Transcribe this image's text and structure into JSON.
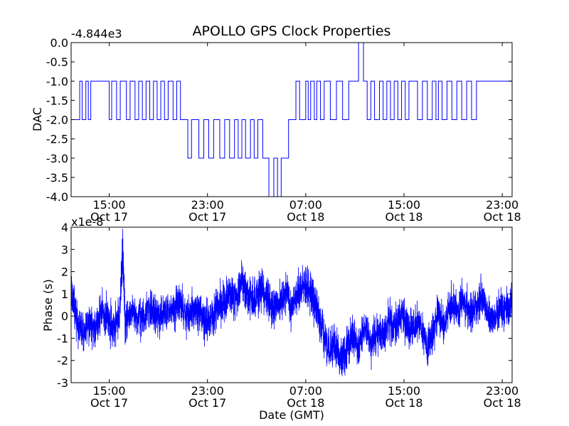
{
  "title": "APOLLO GPS Clock Properties",
  "line_color": "#0000ff",
  "x_ticks": [
    {
      "time": "15:00",
      "date": "Oct 17"
    },
    {
      "time": "23:00",
      "date": "Oct 17"
    },
    {
      "time": "07:00",
      "date": "Oct 18"
    },
    {
      "time": "15:00",
      "date": "Oct 18"
    },
    {
      "time": "23:00",
      "date": "Oct 18"
    }
  ],
  "x_label": "Date (GMT)",
  "chart_data": [
    {
      "type": "line",
      "title": "APOLLO GPS Clock Properties",
      "ylabel": "DAC",
      "offset_label": "-4.844e3",
      "ylim": [
        -4.0,
        0.0
      ],
      "yticks": [
        "0.0",
        "-0.5",
        "-1.0",
        "-1.5",
        "-2.0",
        "-2.5",
        "-3.0",
        "-3.5",
        "-4.0"
      ],
      "x_range_hours": [
        11.9,
        47.8
      ],
      "x_tick_hours": [
        15,
        23,
        31,
        39,
        47
      ],
      "series": [
        {
          "step": true,
          "x": [
            11.9,
            12.6,
            12.8,
            13.1,
            13.3,
            13.5,
            13.8,
            15.0,
            15.2,
            15.6,
            15.9,
            16.4,
            16.7,
            17.1,
            17.4,
            17.7,
            18.0,
            18.3,
            18.6,
            18.9,
            19.2,
            19.5,
            19.8,
            20.2,
            20.5,
            20.8,
            21.1,
            21.4,
            21.7,
            22.3,
            22.7,
            23.1,
            23.5,
            24.0,
            24.4,
            24.8,
            25.2,
            25.5,
            25.8,
            26.1,
            26.5,
            26.8,
            27.1,
            27.5,
            28.0,
            28.4,
            28.7,
            29.0,
            29.3,
            29.6,
            29.9,
            30.2,
            30.5,
            30.8,
            31.0,
            31.2,
            31.4,
            31.7,
            31.9,
            32.2,
            32.5,
            33.0,
            33.5,
            34.0,
            34.5,
            35.0,
            35.3,
            35.7,
            36.0,
            36.3,
            36.6,
            37.0,
            37.3,
            37.6,
            37.9,
            38.2,
            38.5,
            38.8,
            39.1,
            39.4,
            39.7,
            40.1,
            40.5,
            40.9,
            41.3,
            41.6,
            41.8,
            42.1,
            42.5,
            42.9,
            43.3,
            43.7,
            44.1,
            44.5,
            44.9,
            45.2,
            45.5,
            45.8,
            46.1,
            46.5,
            47.0,
            47.5,
            47.8
          ],
          "y": [
            -2.0,
            -1.0,
            -2.0,
            -1.0,
            -2.0,
            -1.0,
            -1.0,
            -2.0,
            -1.0,
            -2.0,
            -1.0,
            -2.0,
            -1.0,
            -2.0,
            -1.0,
            -2.0,
            -1.0,
            -2.0,
            -1.0,
            -2.0,
            -1.0,
            -2.0,
            -1.0,
            -2.0,
            -1.0,
            -2.0,
            -2.0,
            -3.0,
            -2.0,
            -3.0,
            -2.0,
            -3.0,
            -2.0,
            -3.0,
            -2.0,
            -3.0,
            -2.0,
            -3.0,
            -2.0,
            -3.0,
            -2.0,
            -3.0,
            -2.0,
            -3.0,
            -4.0,
            -3.0,
            -4.0,
            -3.0,
            -3.0,
            -2.0,
            -2.0,
            -1.0,
            -2.0,
            -2.0,
            -1.0,
            -2.0,
            -1.0,
            -2.0,
            -1.0,
            -2.0,
            -1.0,
            -2.0,
            -1.0,
            -2.0,
            -1.0,
            -1.0,
            0.0,
            -1.0,
            -2.0,
            -1.0,
            -2.0,
            -1.0,
            -2.0,
            -1.0,
            -2.0,
            -1.0,
            -2.0,
            -1.0,
            -2.0,
            -1.0,
            -1.0,
            -2.0,
            -1.0,
            -2.0,
            -1.0,
            -2.0,
            -1.0,
            -2.0,
            -1.0,
            -2.0,
            -1.0,
            -2.0,
            -1.0,
            -2.0,
            -1.0,
            -1.0,
            -1.0,
            -1.0,
            -1.0,
            -1.0,
            -1.0,
            -1.0,
            -1.0
          ]
        }
      ]
    },
    {
      "type": "line",
      "ylabel": "Phase (s)",
      "xlabel": "Date (GMT)",
      "offset_label": "x1e-8",
      "ylim": [
        -3,
        4
      ],
      "yticks": [
        "4",
        "3",
        "2",
        "1",
        "0",
        "-1",
        "-2",
        "-3"
      ],
      "x_range_hours": [
        11.9,
        47.8
      ],
      "x_tick_hours": [
        15,
        23,
        31,
        39,
        47
      ],
      "series": [
        {
          "x": [
            11.9,
            12.4,
            12.9,
            13.4,
            13.9,
            14.4,
            14.9,
            15.4,
            15.9,
            16.1,
            16.3,
            16.8,
            17.3,
            17.8,
            18.3,
            18.8,
            19.3,
            19.8,
            20.3,
            20.8,
            21.3,
            21.8,
            22.3,
            22.8,
            23.3,
            23.8,
            24.3,
            24.8,
            25.3,
            25.8,
            26.3,
            26.8,
            27.3,
            27.8,
            28.3,
            28.8,
            29.3,
            29.8,
            30.3,
            30.8,
            31.3,
            31.8,
            32.3,
            32.8,
            33.3,
            33.8,
            34.3,
            34.8,
            35.3,
            35.8,
            36.3,
            36.8,
            37.3,
            37.8,
            38.3,
            38.8,
            39.3,
            39.8,
            40.3,
            40.8,
            41.3,
            41.8,
            42.3,
            42.8,
            43.3,
            43.8,
            44.3,
            44.8,
            45.3,
            45.8,
            46.3,
            46.8,
            47.3,
            47.8
          ],
          "y": [
            1.0,
            -0.3,
            -0.8,
            -0.4,
            -0.6,
            0.3,
            -0.2,
            -0.5,
            0.4,
            3.2,
            -0.5,
            0.2,
            0.0,
            -0.2,
            0.3,
            0.1,
            -0.1,
            0.3,
            0.2,
            0.6,
            0.0,
            0.3,
            0.1,
            -0.3,
            -0.1,
            0.4,
            0.6,
            1.0,
            0.8,
            1.6,
            0.9,
            0.6,
            1.2,
            0.8,
            0.3,
            0.6,
            1.1,
            0.4,
            0.9,
            1.5,
            1.2,
            0.4,
            -0.5,
            -1.5,
            -1.3,
            -2.0,
            -1.6,
            -0.8,
            -1.4,
            -0.4,
            -1.2,
            -0.6,
            -0.9,
            -0.3,
            -0.5,
            0.2,
            -0.7,
            -0.4,
            -0.2,
            -1.3,
            -0.9,
            0.2,
            -0.4,
            0.6,
            0.2,
            0.8,
            0.0,
            0.4,
            0.9,
            0.2,
            -0.2,
            0.3,
            0.4,
            0.5
          ]
        }
      ]
    }
  ]
}
